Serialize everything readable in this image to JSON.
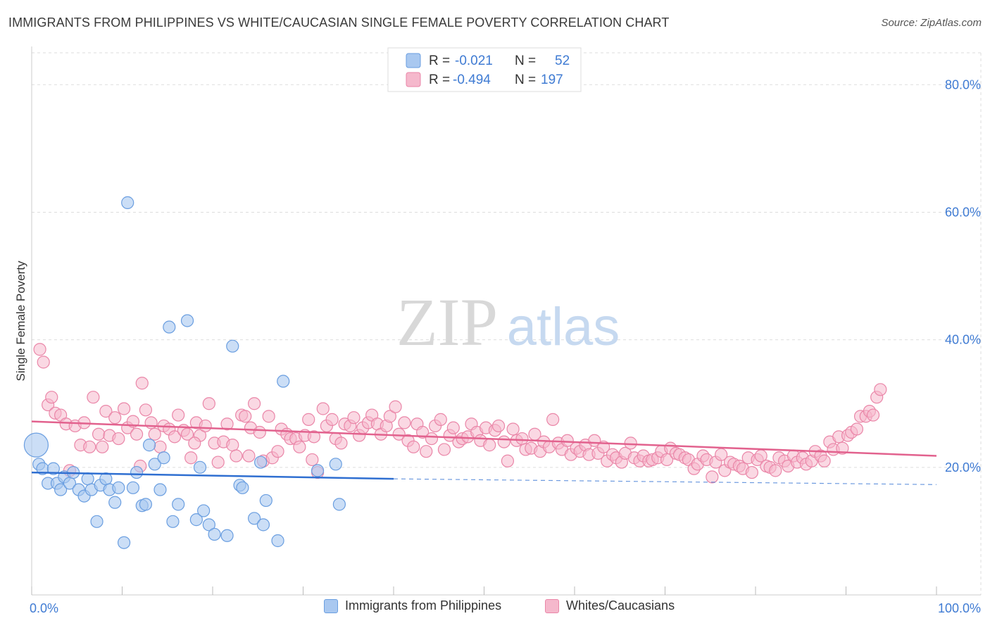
{
  "header": {
    "title": "IMMIGRANTS FROM PHILIPPINES VS WHITE/CAUCASIAN SINGLE FEMALE POVERTY CORRELATION CHART",
    "source": "Source: ZipAtlas.com"
  },
  "watermark": {
    "zip": "ZIP",
    "atlas": "atlas"
  },
  "colors": {
    "blue_fill": "#a9c8f0",
    "blue_stroke": "#6a9ee0",
    "blue_line": "#2f6fd1",
    "pink_fill": "#f5b8cc",
    "pink_stroke": "#ea86a8",
    "pink_line": "#e2628e",
    "axis_label": "#3f7bd3",
    "grid": "#dddddd"
  },
  "legend": {
    "r_label": "R =",
    "n_label": "N =",
    "entries": [
      {
        "r": "-0.021",
        "n": "52"
      },
      {
        "r": "-0.494",
        "n": "197"
      }
    ]
  },
  "chart_data": {
    "type": "scatter",
    "title": "IMMIGRANTS FROM PHILIPPINES VS WHITE/CAUCASIAN SINGLE FEMALE POVERTY CORRELATION CHART",
    "xlabel": "",
    "ylabel": "Single Female Poverty",
    "xlim": [
      0,
      100
    ],
    "ylim": [
      0,
      85
    ],
    "x_tick_labels": [
      "0.0%",
      "100.0%"
    ],
    "y_ticks": [
      20,
      40,
      60,
      80
    ],
    "y_tick_labels": [
      "20.0%",
      "40.0%",
      "60.0%",
      "80.0%"
    ],
    "grid": true,
    "series": [
      {
        "name": "Immigrants from Philippines",
        "r": -0.021,
        "n": 52,
        "trend": {
          "x0": 0,
          "y0": 19.2,
          "x1": 40,
          "y1": 18.2,
          "dashed_to_x": 100,
          "dashed_to_y": 17.3
        },
        "points": [
          {
            "x": 0.5,
            "y": 23.5,
            "big": true
          },
          {
            "x": 0.8,
            "y": 20.5
          },
          {
            "x": 1.2,
            "y": 19.8
          },
          {
            "x": 1.8,
            "y": 17.5
          },
          {
            "x": 2.4,
            "y": 19.8
          },
          {
            "x": 2.8,
            "y": 17.5
          },
          {
            "x": 3.2,
            "y": 16.5
          },
          {
            "x": 3.6,
            "y": 18.5
          },
          {
            "x": 4.2,
            "y": 17.5
          },
          {
            "x": 4.6,
            "y": 19.2
          },
          {
            "x": 5.2,
            "y": 16.5
          },
          {
            "x": 5.8,
            "y": 15.5
          },
          {
            "x": 6.2,
            "y": 18.2
          },
          {
            "x": 6.6,
            "y": 16.5
          },
          {
            "x": 7.2,
            "y": 11.5
          },
          {
            "x": 7.6,
            "y": 17.2
          },
          {
            "x": 8.2,
            "y": 18.2
          },
          {
            "x": 8.6,
            "y": 16.5
          },
          {
            "x": 9.2,
            "y": 14.5
          },
          {
            "x": 9.6,
            "y": 16.8
          },
          {
            "x": 10.2,
            "y": 8.2
          },
          {
            "x": 10.6,
            "y": 61.5
          },
          {
            "x": 11.2,
            "y": 16.8
          },
          {
            "x": 11.6,
            "y": 19.2
          },
          {
            "x": 12.2,
            "y": 14.0
          },
          {
            "x": 12.6,
            "y": 14.2
          },
          {
            "x": 13.0,
            "y": 23.5
          },
          {
            "x": 13.6,
            "y": 20.5
          },
          {
            "x": 14.2,
            "y": 16.5
          },
          {
            "x": 14.6,
            "y": 21.5
          },
          {
            "x": 15.2,
            "y": 42.0
          },
          {
            "x": 15.6,
            "y": 11.5
          },
          {
            "x": 16.2,
            "y": 14.2
          },
          {
            "x": 17.2,
            "y": 43.0
          },
          {
            "x": 18.2,
            "y": 11.8
          },
          {
            "x": 18.6,
            "y": 20.0
          },
          {
            "x": 19.0,
            "y": 13.2
          },
          {
            "x": 19.6,
            "y": 11.0
          },
          {
            "x": 20.2,
            "y": 9.5
          },
          {
            "x": 21.6,
            "y": 9.3
          },
          {
            "x": 22.2,
            "y": 39.0
          },
          {
            "x": 23.0,
            "y": 17.2
          },
          {
            "x": 23.3,
            "y": 16.8
          },
          {
            "x": 24.6,
            "y": 12.0
          },
          {
            "x": 25.3,
            "y": 20.8
          },
          {
            "x": 25.6,
            "y": 11.0
          },
          {
            "x": 25.9,
            "y": 14.8
          },
          {
            "x": 27.2,
            "y": 8.5
          },
          {
            "x": 27.8,
            "y": 33.5
          },
          {
            "x": 31.6,
            "y": 19.5
          },
          {
            "x": 33.6,
            "y": 20.5
          },
          {
            "x": 34.0,
            "y": 14.2
          }
        ]
      },
      {
        "name": "Whites/Caucasians",
        "r": -0.494,
        "n": 197,
        "trend": {
          "x0": 0,
          "y0": 27.2,
          "x1": 100,
          "y1": 21.8
        },
        "points": [
          {
            "x": 0.9,
            "y": 38.5
          },
          {
            "x": 1.3,
            "y": 36.5
          },
          {
            "x": 1.8,
            "y": 29.8
          },
          {
            "x": 2.2,
            "y": 31.0
          },
          {
            "x": 2.6,
            "y": 28.5
          },
          {
            "x": 3.2,
            "y": 28.2
          },
          {
            "x": 3.8,
            "y": 26.8
          },
          {
            "x": 4.2,
            "y": 19.5
          },
          {
            "x": 4.8,
            "y": 26.5
          },
          {
            "x": 5.4,
            "y": 23.5
          },
          {
            "x": 5.8,
            "y": 27.0
          },
          {
            "x": 6.4,
            "y": 23.2
          },
          {
            "x": 6.8,
            "y": 31.0
          },
          {
            "x": 7.4,
            "y": 25.2
          },
          {
            "x": 7.8,
            "y": 23.2
          },
          {
            "x": 8.2,
            "y": 28.8
          },
          {
            "x": 8.6,
            "y": 25.0
          },
          {
            "x": 9.2,
            "y": 27.8
          },
          {
            "x": 9.6,
            "y": 24.5
          },
          {
            "x": 10.2,
            "y": 29.2
          },
          {
            "x": 10.6,
            "y": 26.2
          },
          {
            "x": 11.2,
            "y": 27.2
          },
          {
            "x": 11.6,
            "y": 25.2
          },
          {
            "x": 12.2,
            "y": 33.2
          },
          {
            "x": 12.6,
            "y": 29.0
          },
          {
            "x": 13.2,
            "y": 27.0
          },
          {
            "x": 13.6,
            "y": 25.2
          },
          {
            "x": 14.2,
            "y": 23.2
          },
          {
            "x": 14.6,
            "y": 26.5
          },
          {
            "x": 15.2,
            "y": 26.0
          },
          {
            "x": 15.8,
            "y": 24.8
          },
          {
            "x": 16.2,
            "y": 28.2
          },
          {
            "x": 16.8,
            "y": 25.8
          },
          {
            "x": 17.2,
            "y": 25.2
          },
          {
            "x": 17.6,
            "y": 21.5
          },
          {
            "x": 18.2,
            "y": 27.0
          },
          {
            "x": 18.6,
            "y": 25.0
          },
          {
            "x": 19.2,
            "y": 26.5
          },
          {
            "x": 19.6,
            "y": 30.0
          },
          {
            "x": 20.2,
            "y": 23.8
          },
          {
            "x": 20.6,
            "y": 20.8
          },
          {
            "x": 21.2,
            "y": 24.0
          },
          {
            "x": 21.6,
            "y": 26.8
          },
          {
            "x": 22.2,
            "y": 23.5
          },
          {
            "x": 22.6,
            "y": 21.8
          },
          {
            "x": 23.2,
            "y": 28.2
          },
          {
            "x": 23.6,
            "y": 28.0
          },
          {
            "x": 24.2,
            "y": 26.2
          },
          {
            "x": 24.6,
            "y": 30.0
          },
          {
            "x": 25.2,
            "y": 25.5
          },
          {
            "x": 25.6,
            "y": 21.0
          },
          {
            "x": 26.2,
            "y": 28.0
          },
          {
            "x": 26.6,
            "y": 21.5
          },
          {
            "x": 27.2,
            "y": 22.5
          },
          {
            "x": 27.6,
            "y": 26.0
          },
          {
            "x": 28.2,
            "y": 25.2
          },
          {
            "x": 28.6,
            "y": 24.5
          },
          {
            "x": 29.2,
            "y": 24.5
          },
          {
            "x": 29.6,
            "y": 23.2
          },
          {
            "x": 30.2,
            "y": 25.0
          },
          {
            "x": 30.6,
            "y": 27.5
          },
          {
            "x": 31.2,
            "y": 24.8
          },
          {
            "x": 31.6,
            "y": 19.2
          },
          {
            "x": 32.2,
            "y": 29.2
          },
          {
            "x": 32.6,
            "y": 26.5
          },
          {
            "x": 33.2,
            "y": 27.5
          },
          {
            "x": 33.6,
            "y": 24.5
          },
          {
            "x": 34.2,
            "y": 23.8
          },
          {
            "x": 34.6,
            "y": 26.8
          },
          {
            "x": 35.2,
            "y": 26.5
          },
          {
            "x": 35.6,
            "y": 27.8
          },
          {
            "x": 36.2,
            "y": 25.0
          },
          {
            "x": 36.6,
            "y": 26.2
          },
          {
            "x": 37.2,
            "y": 27.0
          },
          {
            "x": 37.6,
            "y": 28.2
          },
          {
            "x": 38.2,
            "y": 26.8
          },
          {
            "x": 38.6,
            "y": 25.2
          },
          {
            "x": 39.2,
            "y": 26.5
          },
          {
            "x": 39.6,
            "y": 28.0
          },
          {
            "x": 40.2,
            "y": 29.5
          },
          {
            "x": 40.6,
            "y": 25.2
          },
          {
            "x": 41.2,
            "y": 27.0
          },
          {
            "x": 41.6,
            "y": 24.2
          },
          {
            "x": 42.2,
            "y": 23.2
          },
          {
            "x": 42.6,
            "y": 26.8
          },
          {
            "x": 43.2,
            "y": 25.5
          },
          {
            "x": 43.6,
            "y": 22.5
          },
          {
            "x": 44.2,
            "y": 24.5
          },
          {
            "x": 44.6,
            "y": 26.5
          },
          {
            "x": 45.2,
            "y": 27.5
          },
          {
            "x": 45.6,
            "y": 22.8
          },
          {
            "x": 46.2,
            "y": 25.0
          },
          {
            "x": 46.6,
            "y": 26.2
          },
          {
            "x": 47.2,
            "y": 24.0
          },
          {
            "x": 47.6,
            "y": 24.5
          },
          {
            "x": 48.2,
            "y": 24.8
          },
          {
            "x": 48.6,
            "y": 26.8
          },
          {
            "x": 49.2,
            "y": 25.5
          },
          {
            "x": 49.6,
            "y": 24.2
          },
          {
            "x": 50.2,
            "y": 26.2
          },
          {
            "x": 50.6,
            "y": 23.5
          },
          {
            "x": 51.2,
            "y": 25.8
          },
          {
            "x": 51.6,
            "y": 26.5
          },
          {
            "x": 52.2,
            "y": 24.0
          },
          {
            "x": 52.6,
            "y": 21.0
          },
          {
            "x": 53.2,
            "y": 26.0
          },
          {
            "x": 53.6,
            "y": 24.2
          },
          {
            "x": 54.2,
            "y": 24.5
          },
          {
            "x": 54.6,
            "y": 22.8
          },
          {
            "x": 55.2,
            "y": 23.0
          },
          {
            "x": 55.6,
            "y": 25.2
          },
          {
            "x": 56.2,
            "y": 22.5
          },
          {
            "x": 56.6,
            "y": 24.0
          },
          {
            "x": 57.2,
            "y": 23.2
          },
          {
            "x": 57.6,
            "y": 27.5
          },
          {
            "x": 58.2,
            "y": 23.8
          },
          {
            "x": 58.6,
            "y": 22.8
          },
          {
            "x": 59.2,
            "y": 24.2
          },
          {
            "x": 59.6,
            "y": 22.0
          },
          {
            "x": 60.2,
            "y": 23.0
          },
          {
            "x": 60.6,
            "y": 22.5
          },
          {
            "x": 61.2,
            "y": 23.5
          },
          {
            "x": 61.6,
            "y": 22.0
          },
          {
            "x": 62.2,
            "y": 24.2
          },
          {
            "x": 62.6,
            "y": 22.2
          },
          {
            "x": 63.2,
            "y": 23.2
          },
          {
            "x": 63.6,
            "y": 21.0
          },
          {
            "x": 64.2,
            "y": 22.0
          },
          {
            "x": 64.6,
            "y": 21.5
          },
          {
            "x": 65.2,
            "y": 20.8
          },
          {
            "x": 65.6,
            "y": 22.2
          },
          {
            "x": 66.2,
            "y": 23.8
          },
          {
            "x": 66.6,
            "y": 21.5
          },
          {
            "x": 67.2,
            "y": 21.0
          },
          {
            "x": 67.6,
            "y": 21.8
          },
          {
            "x": 68.2,
            "y": 21.0
          },
          {
            "x": 68.6,
            "y": 21.2
          },
          {
            "x": 69.2,
            "y": 21.5
          },
          {
            "x": 69.6,
            "y": 22.5
          },
          {
            "x": 70.2,
            "y": 21.2
          },
          {
            "x": 70.6,
            "y": 23.0
          },
          {
            "x": 71.2,
            "y": 22.2
          },
          {
            "x": 71.6,
            "y": 22.0
          },
          {
            "x": 72.2,
            "y": 21.5
          },
          {
            "x": 72.6,
            "y": 21.2
          },
          {
            "x": 73.2,
            "y": 19.8
          },
          {
            "x": 73.6,
            "y": 20.5
          },
          {
            "x": 74.2,
            "y": 21.8
          },
          {
            "x": 74.6,
            "y": 21.2
          },
          {
            "x": 75.2,
            "y": 18.5
          },
          {
            "x": 75.6,
            "y": 20.8
          },
          {
            "x": 76.2,
            "y": 22.0
          },
          {
            "x": 76.6,
            "y": 19.5
          },
          {
            "x": 77.2,
            "y": 20.8
          },
          {
            "x": 77.6,
            "y": 20.5
          },
          {
            "x": 78.2,
            "y": 20.2
          },
          {
            "x": 78.6,
            "y": 19.8
          },
          {
            "x": 79.2,
            "y": 21.5
          },
          {
            "x": 79.6,
            "y": 19.2
          },
          {
            "x": 80.2,
            "y": 21.2
          },
          {
            "x": 80.6,
            "y": 21.8
          },
          {
            "x": 81.2,
            "y": 20.2
          },
          {
            "x": 81.6,
            "y": 20.0
          },
          {
            "x": 82.2,
            "y": 19.5
          },
          {
            "x": 82.6,
            "y": 21.5
          },
          {
            "x": 83.2,
            "y": 21.0
          },
          {
            "x": 83.6,
            "y": 20.2
          },
          {
            "x": 84.2,
            "y": 21.8
          },
          {
            "x": 84.6,
            "y": 20.8
          },
          {
            "x": 85.2,
            "y": 21.5
          },
          {
            "x": 85.6,
            "y": 20.5
          },
          {
            "x": 86.2,
            "y": 21.0
          },
          {
            "x": 86.6,
            "y": 22.5
          },
          {
            "x": 87.2,
            "y": 21.8
          },
          {
            "x": 87.6,
            "y": 21.0
          },
          {
            "x": 88.2,
            "y": 24.0
          },
          {
            "x": 88.6,
            "y": 22.8
          },
          {
            "x": 89.2,
            "y": 24.8
          },
          {
            "x": 89.6,
            "y": 23.0
          },
          {
            "x": 90.2,
            "y": 25.0
          },
          {
            "x": 90.6,
            "y": 25.5
          },
          {
            "x": 91.2,
            "y": 26.0
          },
          {
            "x": 91.6,
            "y": 28.0
          },
          {
            "x": 92.2,
            "y": 28.0
          },
          {
            "x": 92.6,
            "y": 28.8
          },
          {
            "x": 93.0,
            "y": 28.2
          },
          {
            "x": 93.4,
            "y": 31.0
          },
          {
            "x": 93.8,
            "y": 32.2
          },
          {
            "x": 24.0,
            "y": 21.8
          },
          {
            "x": 31.0,
            "y": 21.2
          },
          {
            "x": 12.0,
            "y": 20.2
          },
          {
            "x": 18.0,
            "y": 23.8
          }
        ]
      }
    ]
  }
}
